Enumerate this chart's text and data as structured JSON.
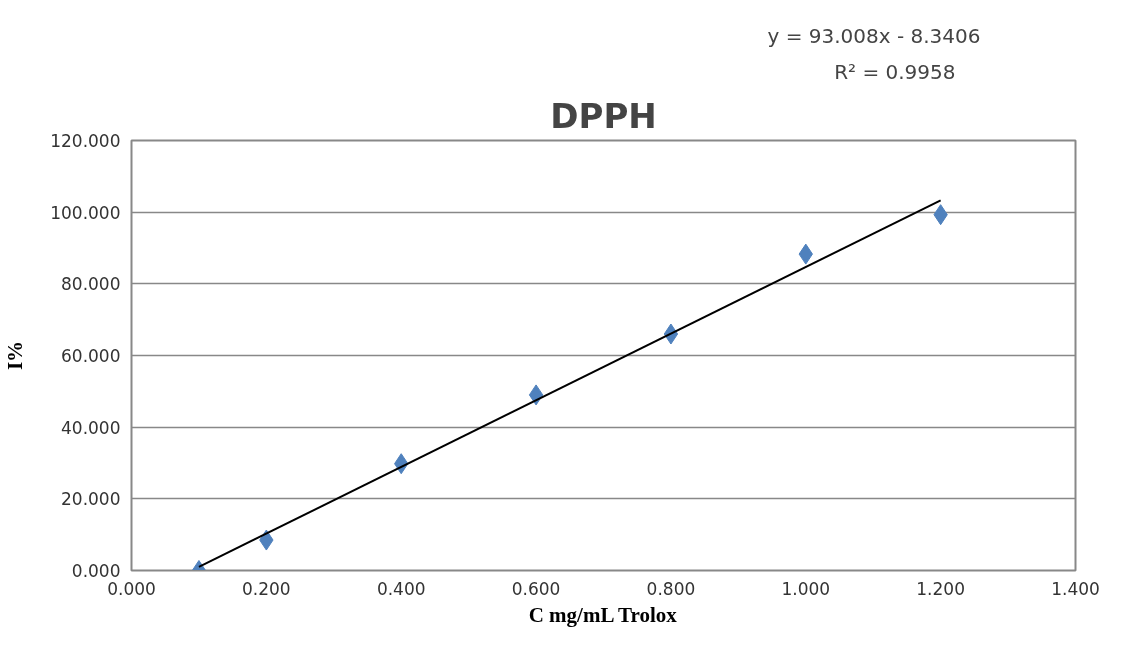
{
  "chart_data": {
    "type": "scatter",
    "title": "DPPH",
    "xlabel": "C mg/mL Trolox",
    "ylabel": "I%",
    "series": [
      {
        "color": "#4f81bd",
        "marker": "diamond",
        "x": [
          0.1,
          0.2,
          0.4,
          0.6,
          0.8,
          1.0,
          1.2
        ],
        "values": [
          0,
          8.5,
          29.8,
          49,
          66,
          88.3,
          99.3
        ]
      },
      {
        "type": "line",
        "color": "#000000",
        "marker": "none",
        "line_style": "solid",
        "x": [
          0.1,
          1.2
        ],
        "values": [
          1,
          103.3
        ]
      }
    ],
    "annotations": [
      "y = 93.008x - 8.3406",
      "R² = 0.9958"
    ],
    "xlim": [
      0,
      1.4
    ],
    "xticks": [
      {
        "value": 0,
        "label": "0.000"
      },
      {
        "value": 0.2,
        "label": "0.200"
      },
      {
        "value": 0.4,
        "label": "0.400"
      },
      {
        "value": 0.6,
        "label": "0.600"
      },
      {
        "value": 0.8,
        "label": "0.800"
      },
      {
        "value": 1.0,
        "label": "1.000"
      },
      {
        "value": 1.2,
        "label": "1.200"
      },
      {
        "value": 1.4,
        "label": "1.400"
      }
    ],
    "ylim": [
      0,
      120
    ],
    "yticks": [
      {
        "value": 0,
        "label": "0.000"
      },
      {
        "value": 20,
        "label": "20.000"
      },
      {
        "value": 40,
        "label": "40.000"
      },
      {
        "value": 60,
        "label": "60.000"
      },
      {
        "value": 80,
        "label": "80.000"
      },
      {
        "value": 100,
        "label": "100.000"
      },
      {
        "value": 120,
        "label": "120.000"
      }
    ],
    "grid": "y"
  }
}
